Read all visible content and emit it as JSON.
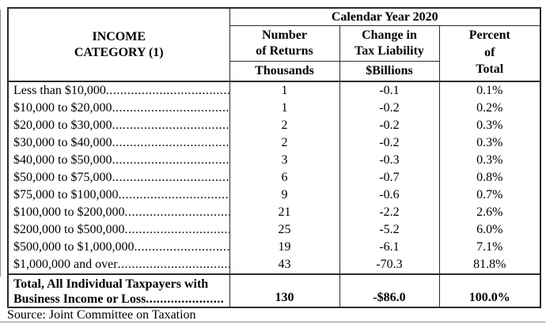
{
  "colors": {
    "background": "#ffffff",
    "text": "#000000",
    "border": "#2b2b2b"
  },
  "header": {
    "income_category_line1": "INCOME",
    "income_category_line2": "CATEGORY (1)",
    "calendar_year": "Calendar Year 2020",
    "number_line1": "Number",
    "number_line2": "of Returns",
    "change_line1": "Change in",
    "change_line2": "Tax Liability",
    "percent_line1": "Percent",
    "percent_line2": "of",
    "percent_line3": "Total",
    "unit_thousands": "Thousands",
    "unit_billions": "$Billions"
  },
  "rows": [
    {
      "label": "Less than $10,000",
      "dots": "........................................",
      "returns": "1",
      "change": "-0.1",
      "percent": "0.1%"
    },
    {
      "label": "$10,000 to $20,000",
      "dots": "........................................",
      "returns": "1",
      "change": "-0.2",
      "percent": "0.2%"
    },
    {
      "label": "$20,000 to $30,000",
      "dots": "........................................",
      "returns": "2",
      "change": "-0.2",
      "percent": "0.3%"
    },
    {
      "label": "$30,000 to $40,000",
      "dots": "........................................",
      "returns": "2",
      "change": "-0.2",
      "percent": "0.3%"
    },
    {
      "label": "$40,000 to $50,000",
      "dots": "........................................",
      "returns": "3",
      "change": "-0.3",
      "percent": "0.3%"
    },
    {
      "label": "$50,000 to $75,000",
      "dots": "........................................",
      "returns": "6",
      "change": "-0.7",
      "percent": "0.8%"
    },
    {
      "label": "$75,000 to $100,000",
      "dots": "........................................",
      "returns": "9",
      "change": "-0.6",
      "percent": "0.7%"
    },
    {
      "label": "$100,000 to $200,000",
      "dots": "........................................",
      "returns": "21",
      "change": "-2.2",
      "percent": "2.6%"
    },
    {
      "label": "$200,000 to $500,000",
      "dots": "........................................",
      "returns": "25",
      "change": "-5.2",
      "percent": "6.0%"
    },
    {
      "label": "$500,000 to $1,000,000",
      "dots": "........................................",
      "returns": "19",
      "change": "-6.1",
      "percent": "7.1%"
    },
    {
      "label": "$1,000,000 and over",
      "dots": "........................................",
      "returns": "43",
      "change": "-70.3",
      "percent": "81.8%"
    }
  ],
  "total": {
    "label_line1": "Total, All Individual Taxpayers with",
    "label_line2": "Business Income or Loss",
    "dots": "......................",
    "returns": "130",
    "change": "-$86.0",
    "percent": "100.0%"
  },
  "source": "Source: Joint Committee on Taxation"
}
